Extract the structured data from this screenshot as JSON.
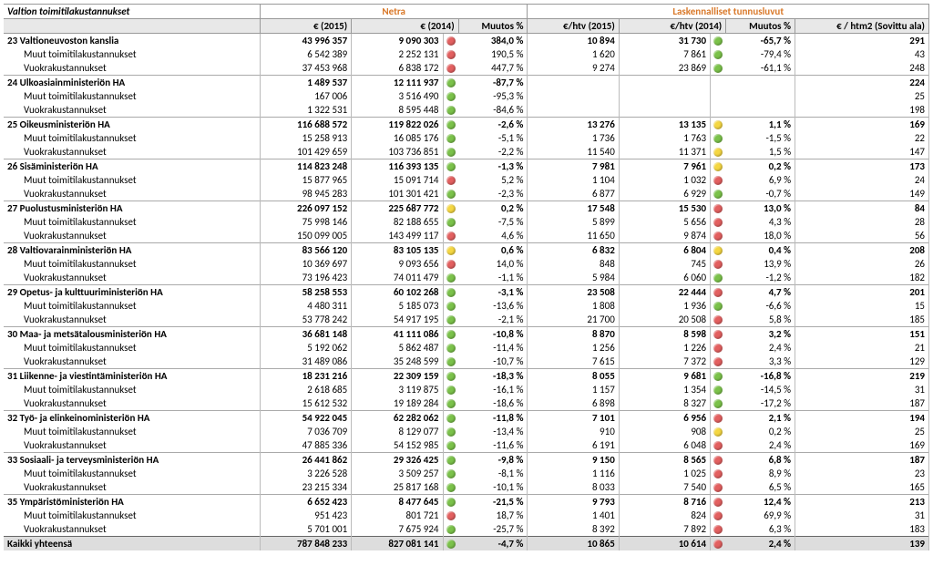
{
  "colors": {
    "green": "#7bc24a",
    "yellow": "#f5d742",
    "red": "#e36060"
  },
  "headers": {
    "title": "Valtion toimitilakustannukset",
    "group1": "Netra",
    "group2": "Laskennalliset tunnusluvut",
    "e2015": "€ (2015)",
    "e2014": "€ (2014)",
    "muutos": "Muutos %",
    "ehtv2015": "€/htv (2015)",
    "ehtv2014": "€/htv (2014)",
    "htm2": "€ / htm2 (Sovittu ala)"
  },
  "rows": [
    {
      "t": "m",
      "name": "23 Valtioneuvoston kanslia",
      "e15": "43 996 357",
      "e14": "9 090 303",
      "d1": "red",
      "m1": "384,0 %",
      "h15": "10 894",
      "h14": "31 730",
      "d2": "green",
      "m2": "-65,7 %",
      "ht": "291"
    },
    {
      "t": "s",
      "name": "Muut toimitilakustannukset",
      "e15": "6 542 389",
      "e14": "2 252 131",
      "d1": "red",
      "m1": "190,5 %",
      "h15": "1 620",
      "h14": "7 861",
      "d2": "green",
      "m2": "-79,4 %",
      "ht": "43"
    },
    {
      "t": "s",
      "name": "Vuokrakustannukset",
      "e15": "37 453 968",
      "e14": "6 838 172",
      "d1": "red",
      "m1": "447,7 %",
      "h15": "9 274",
      "h14": "23 869",
      "d2": "green",
      "m2": "-61,1 %",
      "ht": "248"
    },
    {
      "t": "m",
      "name": "24 Ulkoasiainministeriön HA",
      "e15": "1 489 537",
      "e14": "12 111 937",
      "d1": "green",
      "m1": "-87,7 %",
      "h15": "",
      "h14": "",
      "d2": "",
      "m2": "",
      "ht": "224"
    },
    {
      "t": "s",
      "name": "Muut toimitilakustannukset",
      "e15": "167 006",
      "e14": "3 516 490",
      "d1": "green",
      "m1": "-95,3 %",
      "h15": "",
      "h14": "",
      "d2": "",
      "m2": "",
      "ht": "25"
    },
    {
      "t": "s",
      "name": "Vuokrakustannukset",
      "e15": "1 322 531",
      "e14": "8 595 448",
      "d1": "green",
      "m1": "-84,6 %",
      "h15": "",
      "h14": "",
      "d2": "",
      "m2": "",
      "ht": "198"
    },
    {
      "t": "m",
      "name": "25 Oikeusministeriön HA",
      "e15": "116 688 572",
      "e14": "119 822 026",
      "d1": "green",
      "m1": "-2,6 %",
      "h15": "13 276",
      "h14": "13 135",
      "d2": "yellow",
      "m2": "1,1 %",
      "ht": "169"
    },
    {
      "t": "s",
      "name": "Muut toimitilakustannukset",
      "e15": "15 258 913",
      "e14": "16 085 176",
      "d1": "green",
      "m1": "-5,1 %",
      "h15": "1 736",
      "h14": "1 763",
      "d2": "green",
      "m2": "-1,5 %",
      "ht": "22"
    },
    {
      "t": "s",
      "name": "Vuokrakustannukset",
      "e15": "101 429 659",
      "e14": "103 736 851",
      "d1": "green",
      "m1": "-2,2 %",
      "h15": "11 540",
      "h14": "11 371",
      "d2": "yellow",
      "m2": "1,5 %",
      "ht": "147"
    },
    {
      "t": "m",
      "name": "26 Sisäministeriön HA",
      "e15": "114 823 248",
      "e14": "116 393 135",
      "d1": "green",
      "m1": "-1,3 %",
      "h15": "7 981",
      "h14": "7 961",
      "d2": "yellow",
      "m2": "0,2 %",
      "ht": "173"
    },
    {
      "t": "s",
      "name": "Muut toimitilakustannukset",
      "e15": "15 877 965",
      "e14": "15 091 714",
      "d1": "red",
      "m1": "5,2 %",
      "h15": "1 104",
      "h14": "1 032",
      "d2": "red",
      "m2": "6,9 %",
      "ht": "24"
    },
    {
      "t": "s",
      "name": "Vuokrakustannukset",
      "e15": "98 945 283",
      "e14": "101 301 421",
      "d1": "green",
      "m1": "-2,3 %",
      "h15": "6 877",
      "h14": "6 929",
      "d2": "green",
      "m2": "-0,7 %",
      "ht": "149"
    },
    {
      "t": "m",
      "name": "27 Puolustusministeriön HA",
      "e15": "226 097 152",
      "e14": "225 687 772",
      "d1": "yellow",
      "m1": "0,2 %",
      "h15": "17 548",
      "h14": "15 530",
      "d2": "red",
      "m2": "13,0 %",
      "ht": "84"
    },
    {
      "t": "s",
      "name": "Muut toimitilakustannukset",
      "e15": "75 998 146",
      "e14": "82 188 655",
      "d1": "green",
      "m1": "-7,5 %",
      "h15": "5 899",
      "h14": "5 656",
      "d2": "red",
      "m2": "4,3 %",
      "ht": "28"
    },
    {
      "t": "s",
      "name": "Vuokrakustannukset",
      "e15": "150 099 005",
      "e14": "143 499 117",
      "d1": "red",
      "m1": "4,6 %",
      "h15": "11 650",
      "h14": "9 874",
      "d2": "red",
      "m2": "18,0 %",
      "ht": "56"
    },
    {
      "t": "m",
      "name": "28 Valtiovarainministeriön HA",
      "e15": "83 566 120",
      "e14": "83 105 135",
      "d1": "yellow",
      "m1": "0,6 %",
      "h15": "6 832",
      "h14": "6 804",
      "d2": "yellow",
      "m2": "0,4 %",
      "ht": "208"
    },
    {
      "t": "s",
      "name": "Muut toimitilakustannukset",
      "e15": "10 369 697",
      "e14": "9 093 656",
      "d1": "red",
      "m1": "14,0 %",
      "h15": "848",
      "h14": "745",
      "d2": "red",
      "m2": "13,9 %",
      "ht": "26"
    },
    {
      "t": "s",
      "name": "Vuokrakustannukset",
      "e15": "73 196 423",
      "e14": "74 011 479",
      "d1": "green",
      "m1": "-1,1 %",
      "h15": "5 984",
      "h14": "6 060",
      "d2": "green",
      "m2": "-1,2 %",
      "ht": "182"
    },
    {
      "t": "m",
      "name": "29 Opetus- ja kulttuuriministeriön HA",
      "e15": "58 258 553",
      "e14": "60 102 268",
      "d1": "green",
      "m1": "-3,1 %",
      "h15": "23 508",
      "h14": "22 444",
      "d2": "red",
      "m2": "4,7 %",
      "ht": "201"
    },
    {
      "t": "s",
      "name": "Muut toimitilakustannukset",
      "e15": "4 480 311",
      "e14": "5 185 073",
      "d1": "green",
      "m1": "-13,6 %",
      "h15": "1 808",
      "h14": "1 936",
      "d2": "green",
      "m2": "-6,6 %",
      "ht": "15"
    },
    {
      "t": "s",
      "name": "Vuokrakustannukset",
      "e15": "53 778 242",
      "e14": "54 917 195",
      "d1": "green",
      "m1": "-2,1 %",
      "h15": "21 700",
      "h14": "20 508",
      "d2": "red",
      "m2": "5,8 %",
      "ht": "185"
    },
    {
      "t": "m",
      "name": "30 Maa- ja metsätalousministeriön HA",
      "e15": "36 681 148",
      "e14": "41 111 086",
      "d1": "green",
      "m1": "-10,8 %",
      "h15": "8 870",
      "h14": "8 598",
      "d2": "red",
      "m2": "3,2 %",
      "ht": "151"
    },
    {
      "t": "s",
      "name": "Muut toimitilakustannukset",
      "e15": "5 192 062",
      "e14": "5 862 487",
      "d1": "green",
      "m1": "-11,4 %",
      "h15": "1 256",
      "h14": "1 226",
      "d2": "red",
      "m2": "2,4 %",
      "ht": "21"
    },
    {
      "t": "s",
      "name": "Vuokrakustannukset",
      "e15": "31 489 086",
      "e14": "35 248 599",
      "d1": "green",
      "m1": "-10,7 %",
      "h15": "7 615",
      "h14": "7 372",
      "d2": "red",
      "m2": "3,3 %",
      "ht": "129"
    },
    {
      "t": "m",
      "name": "31 Liikenne- ja viestintäministeriön HA",
      "e15": "18 231 216",
      "e14": "22 309 159",
      "d1": "green",
      "m1": "-18,3 %",
      "h15": "8 055",
      "h14": "9 681",
      "d2": "green",
      "m2": "-16,8 %",
      "ht": "219"
    },
    {
      "t": "s",
      "name": "Muut toimitilakustannukset",
      "e15": "2 618 685",
      "e14": "3 119 875",
      "d1": "green",
      "m1": "-16,1 %",
      "h15": "1 157",
      "h14": "1 354",
      "d2": "green",
      "m2": "-14,5 %",
      "ht": "31"
    },
    {
      "t": "s",
      "name": "Vuokrakustannukset",
      "e15": "15 612 532",
      "e14": "19 189 284",
      "d1": "green",
      "m1": "-18,6 %",
      "h15": "6 898",
      "h14": "8 327",
      "d2": "green",
      "m2": "-17,2 %",
      "ht": "187"
    },
    {
      "t": "m",
      "name": "32 Työ- ja elinkeinoministeriön HA",
      "e15": "54 922 045",
      "e14": "62 282 062",
      "d1": "green",
      "m1": "-11,8 %",
      "h15": "7 101",
      "h14": "6 956",
      "d2": "red",
      "m2": "2,1 %",
      "ht": "194"
    },
    {
      "t": "s",
      "name": "Muut toimitilakustannukset",
      "e15": "7 036 709",
      "e14": "8 129 077",
      "d1": "green",
      "m1": "-13,4 %",
      "h15": "910",
      "h14": "908",
      "d2": "yellow",
      "m2": "0,2 %",
      "ht": "25"
    },
    {
      "t": "s",
      "name": "Vuokrakustannukset",
      "e15": "47 885 336",
      "e14": "54 152 985",
      "d1": "green",
      "m1": "-11,6 %",
      "h15": "6 191",
      "h14": "6 048",
      "d2": "red",
      "m2": "2,4 %",
      "ht": "169"
    },
    {
      "t": "m",
      "name": "33 Sosiaali- ja terveysministeriön HA",
      "e15": "26 441 862",
      "e14": "29 326 425",
      "d1": "green",
      "m1": "-9,8 %",
      "h15": "9 150",
      "h14": "8 565",
      "d2": "red",
      "m2": "6,8 %",
      "ht": "187"
    },
    {
      "t": "s",
      "name": "Muut toimitilakustannukset",
      "e15": "3 226 528",
      "e14": "3 509 257",
      "d1": "green",
      "m1": "-8,1 %",
      "h15": "1 116",
      "h14": "1 025",
      "d2": "red",
      "m2": "8,9 %",
      "ht": "23"
    },
    {
      "t": "s",
      "name": "Vuokrakustannukset",
      "e15": "23 215 334",
      "e14": "25 817 168",
      "d1": "green",
      "m1": "-10,1 %",
      "h15": "8 033",
      "h14": "7 540",
      "d2": "red",
      "m2": "6,5 %",
      "ht": "165"
    },
    {
      "t": "m",
      "name": "35 Ympäristöministeriön HA",
      "e15": "6 652 423",
      "e14": "8 477 645",
      "d1": "green",
      "m1": "-21,5 %",
      "h15": "9 793",
      "h14": "8 716",
      "d2": "red",
      "m2": "12,4 %",
      "ht": "213"
    },
    {
      "t": "s",
      "name": "Muut toimitilakustannukset",
      "e15": "951 423",
      "e14": "801 721",
      "d1": "red",
      "m1": "18,7 %",
      "h15": "1 401",
      "h14": "824",
      "d2": "red",
      "m2": "69,9 %",
      "ht": "31"
    },
    {
      "t": "s",
      "name": "Vuokrakustannukset",
      "e15": "5 701 001",
      "e14": "7 675 924",
      "d1": "green",
      "m1": "-25,7 %",
      "h15": "8 392",
      "h14": "7 892",
      "d2": "red",
      "m2": "6,3 %",
      "ht": "183"
    },
    {
      "t": "tot",
      "name": "Kaikki yhteensä",
      "e15": "787 848 233",
      "e14": "827 081 141",
      "d1": "green",
      "m1": "-4,7 %",
      "h15": "10 865",
      "h14": "10 614",
      "d2": "red",
      "m2": "2,4 %",
      "ht": "139"
    }
  ]
}
